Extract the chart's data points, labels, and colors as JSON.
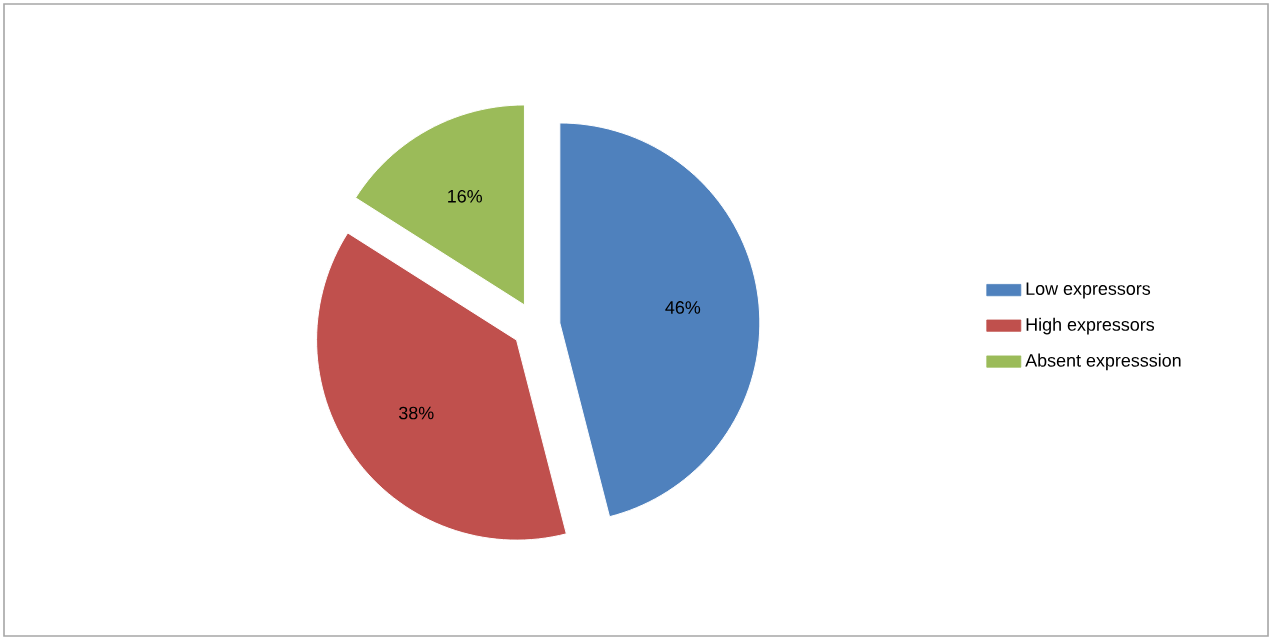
{
  "chart_data": {
    "type": "pie",
    "categories": [
      "Low expressors",
      "High expressors",
      "Absent expresssion"
    ],
    "values": [
      46,
      38,
      16
    ],
    "value_labels": [
      "46%",
      "38%",
      "16%"
    ],
    "colors": [
      "#4f81bd",
      "#c0504d",
      "#9bbb59"
    ],
    "legend": "right"
  }
}
